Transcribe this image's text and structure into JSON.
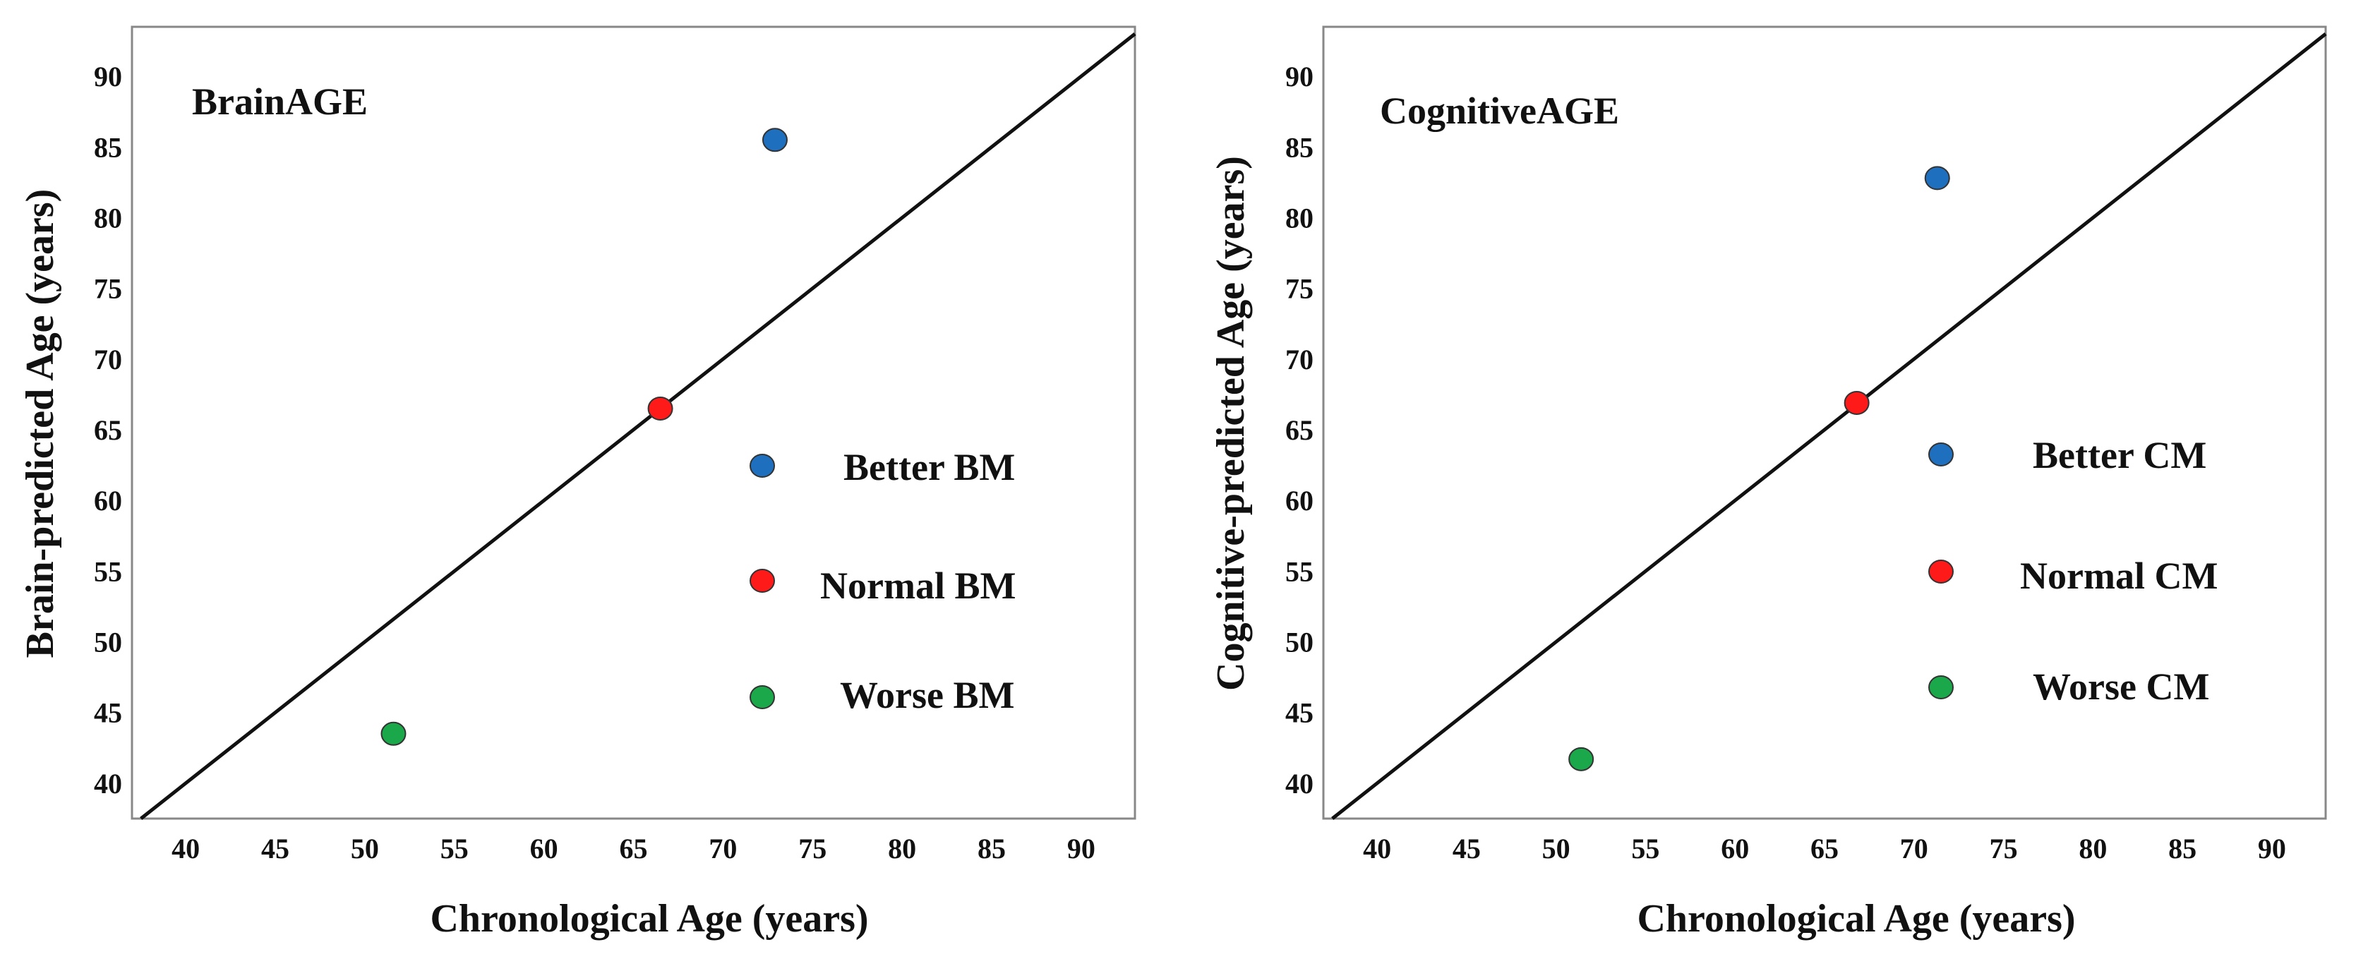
{
  "colors": {
    "better": "#1f6fbf",
    "normal": "#ff1a1a",
    "worse": "#1aa84a",
    "line": "#111111",
    "frame": "#888888"
  },
  "chart_data": [
    {
      "type": "scatter",
      "title": "BrainAGE",
      "xlabel": "Chronological Age (years)",
      "ylabel": "Brain-predicted Age (years)",
      "xlim": [
        37,
        93
      ],
      "ylim": [
        37.5,
        93.5
      ],
      "xticks": [
        "40",
        "45",
        "50",
        "55",
        "60",
        "65",
        "70",
        "75",
        "80",
        "85",
        "90"
      ],
      "yticks": [
        "40",
        "45",
        "50",
        "55",
        "60",
        "65",
        "70",
        "75",
        "80",
        "85",
        "90"
      ],
      "reference_line": "identity (y = x)",
      "grid": false,
      "legend_position": "right",
      "series": [
        {
          "name": "Better BM",
          "color_key": "better",
          "x": [
            72.9
          ],
          "y": [
            85.5
          ]
        },
        {
          "name": "Normal BM",
          "color_key": "normal",
          "x": [
            66.5
          ],
          "y": [
            66.5
          ]
        },
        {
          "name": "Worse BM",
          "color_key": "worse",
          "x": [
            51.6
          ],
          "y": [
            43.5
          ]
        }
      ]
    },
    {
      "type": "scatter",
      "title": "CognitiveAGE",
      "xlabel": "Chronological Age (years)",
      "ylabel": "Cognitive-predicted Age (years)",
      "xlim": [
        37,
        93
      ],
      "ylim": [
        37.5,
        93.5
      ],
      "xticks": [
        "40",
        "45",
        "50",
        "55",
        "60",
        "65",
        "70",
        "75",
        "80",
        "85",
        "90"
      ],
      "yticks": [
        "40",
        "45",
        "50",
        "55",
        "60",
        "65",
        "70",
        "75",
        "80",
        "85",
        "90"
      ],
      "reference_line": "identity (y = x)",
      "grid": false,
      "legend_position": "right",
      "series": [
        {
          "name": "Better CM",
          "color_key": "better",
          "x": [
            71.3
          ],
          "y": [
            82.8
          ]
        },
        {
          "name": "Normal CM",
          "color_key": "normal",
          "x": [
            66.8
          ],
          "y": [
            66.9
          ]
        },
        {
          "name": "Worse CM",
          "color_key": "worse",
          "x": [
            51.4
          ],
          "y": [
            41.7
          ]
        }
      ]
    }
  ]
}
